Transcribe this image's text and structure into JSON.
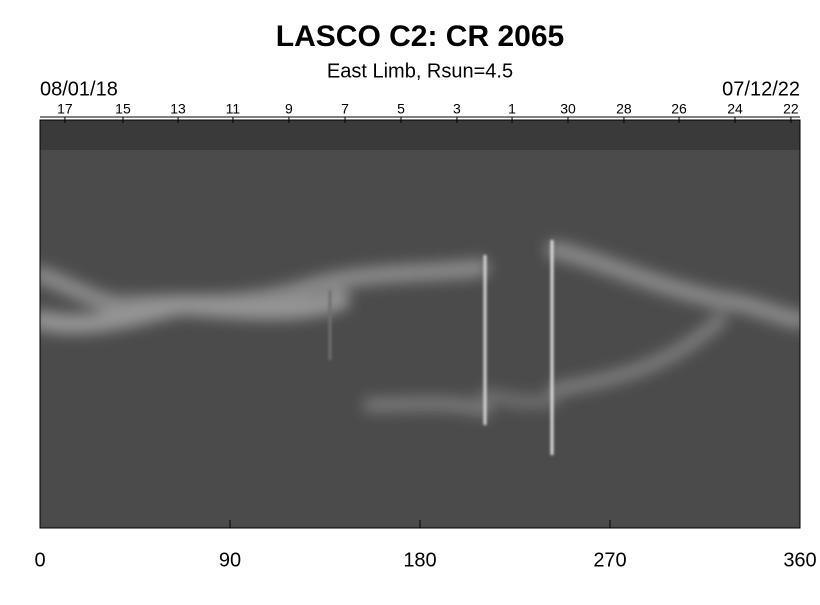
{
  "chart_data": {
    "type": "synoptic-map",
    "title": "LASCO C2: CR 2065",
    "subtitle": "East Limb, Rsun=4.5",
    "start_date": "08/01/18",
    "end_date": "07/12/22",
    "xlim": [
      0,
      360
    ],
    "xticks": [
      0,
      90,
      180,
      270,
      360
    ],
    "top_ticks": [
      {
        "value": 11.8,
        "label": "17"
      },
      {
        "value": 39.3,
        "label": "15"
      },
      {
        "value": 65.4,
        "label": "13"
      },
      {
        "value": 91.4,
        "label": "11"
      },
      {
        "value": 117.9,
        "label": "9"
      },
      {
        "value": 144.5,
        "label": "7"
      },
      {
        "value": 171.0,
        "label": "5"
      },
      {
        "value": 197.5,
        "label": "3"
      },
      {
        "value": 223.6,
        "label": "1"
      },
      {
        "value": 250.1,
        "label": "30"
      },
      {
        "value": 276.6,
        "label": "28"
      },
      {
        "value": 302.7,
        "label": "26"
      },
      {
        "value": 329.2,
        "label": "24"
      },
      {
        "value": 355.7,
        "label": "22"
      }
    ]
  }
}
